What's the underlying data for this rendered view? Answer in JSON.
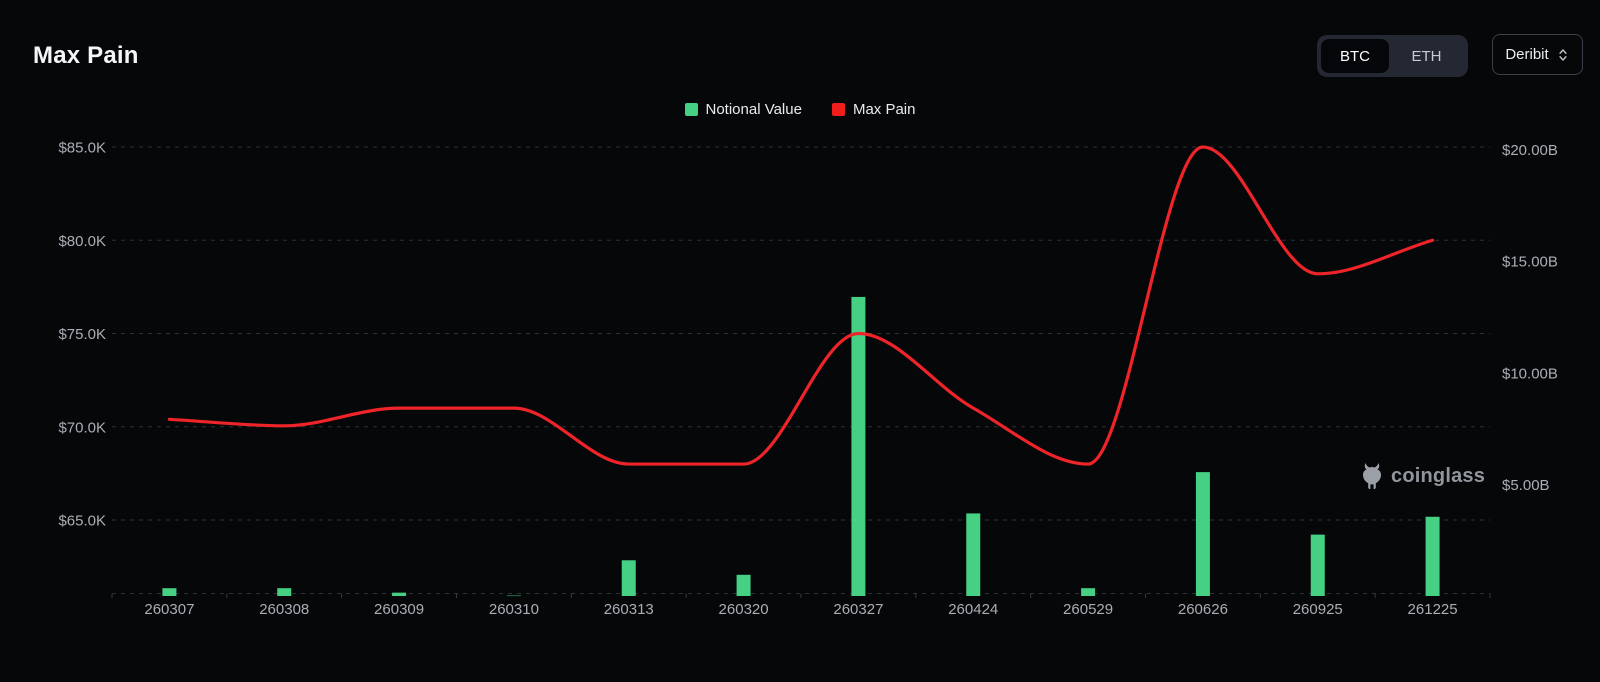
{
  "header": {
    "title": "Max Pain",
    "asset_toggle": {
      "options": [
        "BTC",
        "ETH"
      ],
      "selected": "BTC"
    },
    "exchange_select": {
      "value": "Deribit"
    }
  },
  "legend": {
    "items": [
      {
        "label": "Notional Value",
        "color": "#46d084"
      },
      {
        "label": "Max Pain",
        "color": "#f01d1d"
      }
    ]
  },
  "watermark": {
    "text": "coinglass"
  },
  "chart_data": {
    "type": "bar",
    "subtype": "bar+line dual axis",
    "title": "Max Pain",
    "categories": [
      "260307",
      "260308",
      "260309",
      "260310",
      "260313",
      "260320",
      "260327",
      "260424",
      "260529",
      "260626",
      "260925",
      "261225"
    ],
    "series": [
      {
        "name": "Notional Value",
        "type": "bar",
        "axis": "right",
        "unit": "USD billions",
        "color": "#46d084",
        "values": [
          0.35,
          0.35,
          0.15,
          0.02,
          1.6,
          0.95,
          13.4,
          3.7,
          0.35,
          5.55,
          2.75,
          3.55
        ]
      },
      {
        "name": "Max Pain",
        "type": "line",
        "axis": "left",
        "unit": "USD",
        "color": "#ee2429",
        "values": [
          70400,
          70050,
          71000,
          71000,
          68000,
          68000,
          75000,
          71000,
          68000,
          85000,
          78200,
          80000
        ]
      }
    ],
    "left_axis": {
      "ticks": [
        {
          "label": "$85.0K",
          "value": 85000
        },
        {
          "label": "$80.0K",
          "value": 80000
        },
        {
          "label": "$75.0K",
          "value": 75000
        },
        {
          "label": "$70.0K",
          "value": 70000
        },
        {
          "label": "$65.0K",
          "value": 65000
        }
      ],
      "range": [
        61000,
        85500
      ]
    },
    "right_axis": {
      "ticks": [
        {
          "label": "$20.00B",
          "value": 20
        },
        {
          "label": "$15.00B",
          "value": 15
        },
        {
          "label": "$10.00B",
          "value": 10
        },
        {
          "label": "$5.00B",
          "value": 5
        }
      ],
      "range": [
        0,
        21
      ]
    },
    "grid": "horizontal dashed lines, dashed baseline",
    "legend_position": "top center"
  }
}
